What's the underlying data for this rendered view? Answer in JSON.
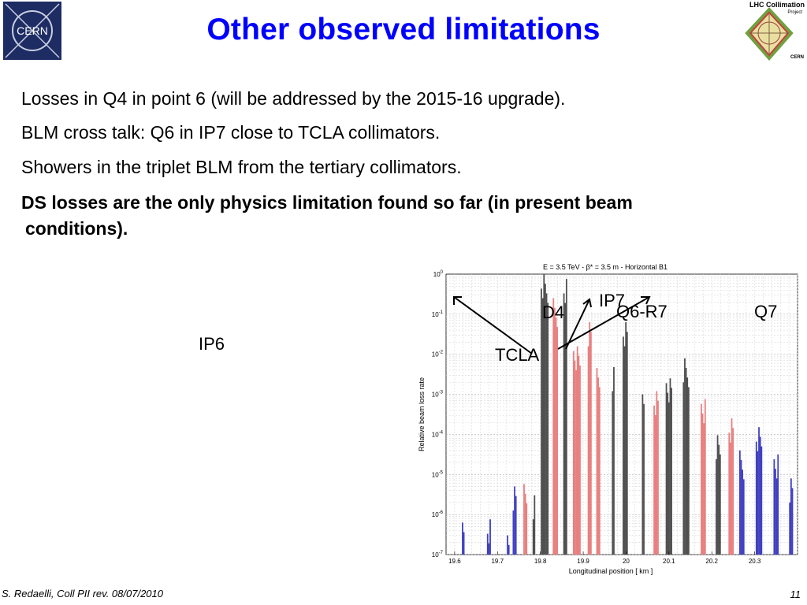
{
  "slide": {
    "title": "Other observed limitations",
    "bullets": [
      "Losses in Q4 in point 6 (will be addressed by the 2015-16 upgrade).",
      "BLM cross talk: Q6 in IP7 close to TCLA collimators.",
      "Showers in the triplet BLM from the tertiary collimators."
    ],
    "bold_bullet_line1": "DS losses are the only physics limitation found so far (in present beam",
    "bold_bullet_line2": "conditions).",
    "footer_left": "S. Redaelli, Coll PII rev. 08/07/2010",
    "page_number": "11"
  },
  "logos": {
    "cern_text": "CERN",
    "lhc_title": "LHC Collimation",
    "lhc_project": "Project",
    "lhc_cern": "CERN"
  },
  "annotations": {
    "ip6": "IP6",
    "d4": "D4",
    "ip7": "IP7",
    "q6_r7": "Q6-R7",
    "q7": "Q7",
    "tcla": "TCLA"
  },
  "chart_data": {
    "type": "bar",
    "title": "E = 3.5 TeV - β* = 3.5 m - Horizontal B1",
    "xlabel": "Longitudinal position [ km ]",
    "ylabel": "Relative beam loss rate",
    "xlim": [
      19.58,
      20.4
    ],
    "ylim_log10": [
      -7,
      0
    ],
    "xticks": [
      "19.6",
      "19.7",
      "19.8",
      "19.9",
      "20",
      "20.1",
      "20.2",
      "20.3"
    ],
    "yticks": [
      "10^0",
      "10^-1",
      "10^-2",
      "10^-3",
      "10^-4",
      "10^-5",
      "10^-6",
      "10^-7"
    ],
    "colors": {
      "collimator": "#505050",
      "warm": "#e88080",
      "cold": "#4040c0"
    },
    "groups": [
      {
        "x": 19.62,
        "n": 2,
        "top": -6.2,
        "c": "cold"
      },
      {
        "x": 19.68,
        "n": 3,
        "top": -6.0,
        "c": "cold"
      },
      {
        "x": 19.725,
        "n": 2,
        "top": -6.4,
        "c": "cold"
      },
      {
        "x": 19.74,
        "n": 3,
        "top": -5.3,
        "c": "cold"
      },
      {
        "x": 19.765,
        "n": 3,
        "top": -5.0,
        "c": "warm"
      },
      {
        "x": 19.785,
        "n": 2,
        "top": -5.4,
        "c": "collimator"
      },
      {
        "x": 19.81,
        "n": 6,
        "top": 0.0,
        "c": "collimator"
      },
      {
        "x": 19.835,
        "n": 4,
        "top": -0.6,
        "c": "warm"
      },
      {
        "x": 19.858,
        "n": 3,
        "top": 0.0,
        "c": "collimator"
      },
      {
        "x": 19.885,
        "n": 6,
        "top": -1.8,
        "c": "warm"
      },
      {
        "x": 19.915,
        "n": 3,
        "top": -1.2,
        "c": "warm"
      },
      {
        "x": 19.935,
        "n": 3,
        "top": -2.1,
        "c": "warm"
      },
      {
        "x": 19.97,
        "n": 2,
        "top": -2.2,
        "c": "collimator"
      },
      {
        "x": 19.998,
        "n": 4,
        "top": -1.2,
        "c": "collimator"
      },
      {
        "x": 20.04,
        "n": 2,
        "top": -3.0,
        "c": "collimator"
      },
      {
        "x": 20.07,
        "n": 4,
        "top": -2.8,
        "c": "warm"
      },
      {
        "x": 20.1,
        "n": 5,
        "top": -2.6,
        "c": "collimator"
      },
      {
        "x": 20.14,
        "n": 5,
        "top": -2.1,
        "c": "collimator"
      },
      {
        "x": 20.18,
        "n": 4,
        "top": -3.0,
        "c": "warm"
      },
      {
        "x": 20.215,
        "n": 4,
        "top": -3.9,
        "c": "collimator"
      },
      {
        "x": 20.245,
        "n": 4,
        "top": -3.6,
        "c": "warm"
      },
      {
        "x": 20.27,
        "n": 4,
        "top": -4.4,
        "c": "cold"
      },
      {
        "x": 20.31,
        "n": 5,
        "top": -3.7,
        "c": "cold"
      },
      {
        "x": 20.35,
        "n": 4,
        "top": -4.5,
        "c": "cold"
      },
      {
        "x": 20.385,
        "n": 3,
        "top": -5.1,
        "c": "cold"
      }
    ]
  }
}
